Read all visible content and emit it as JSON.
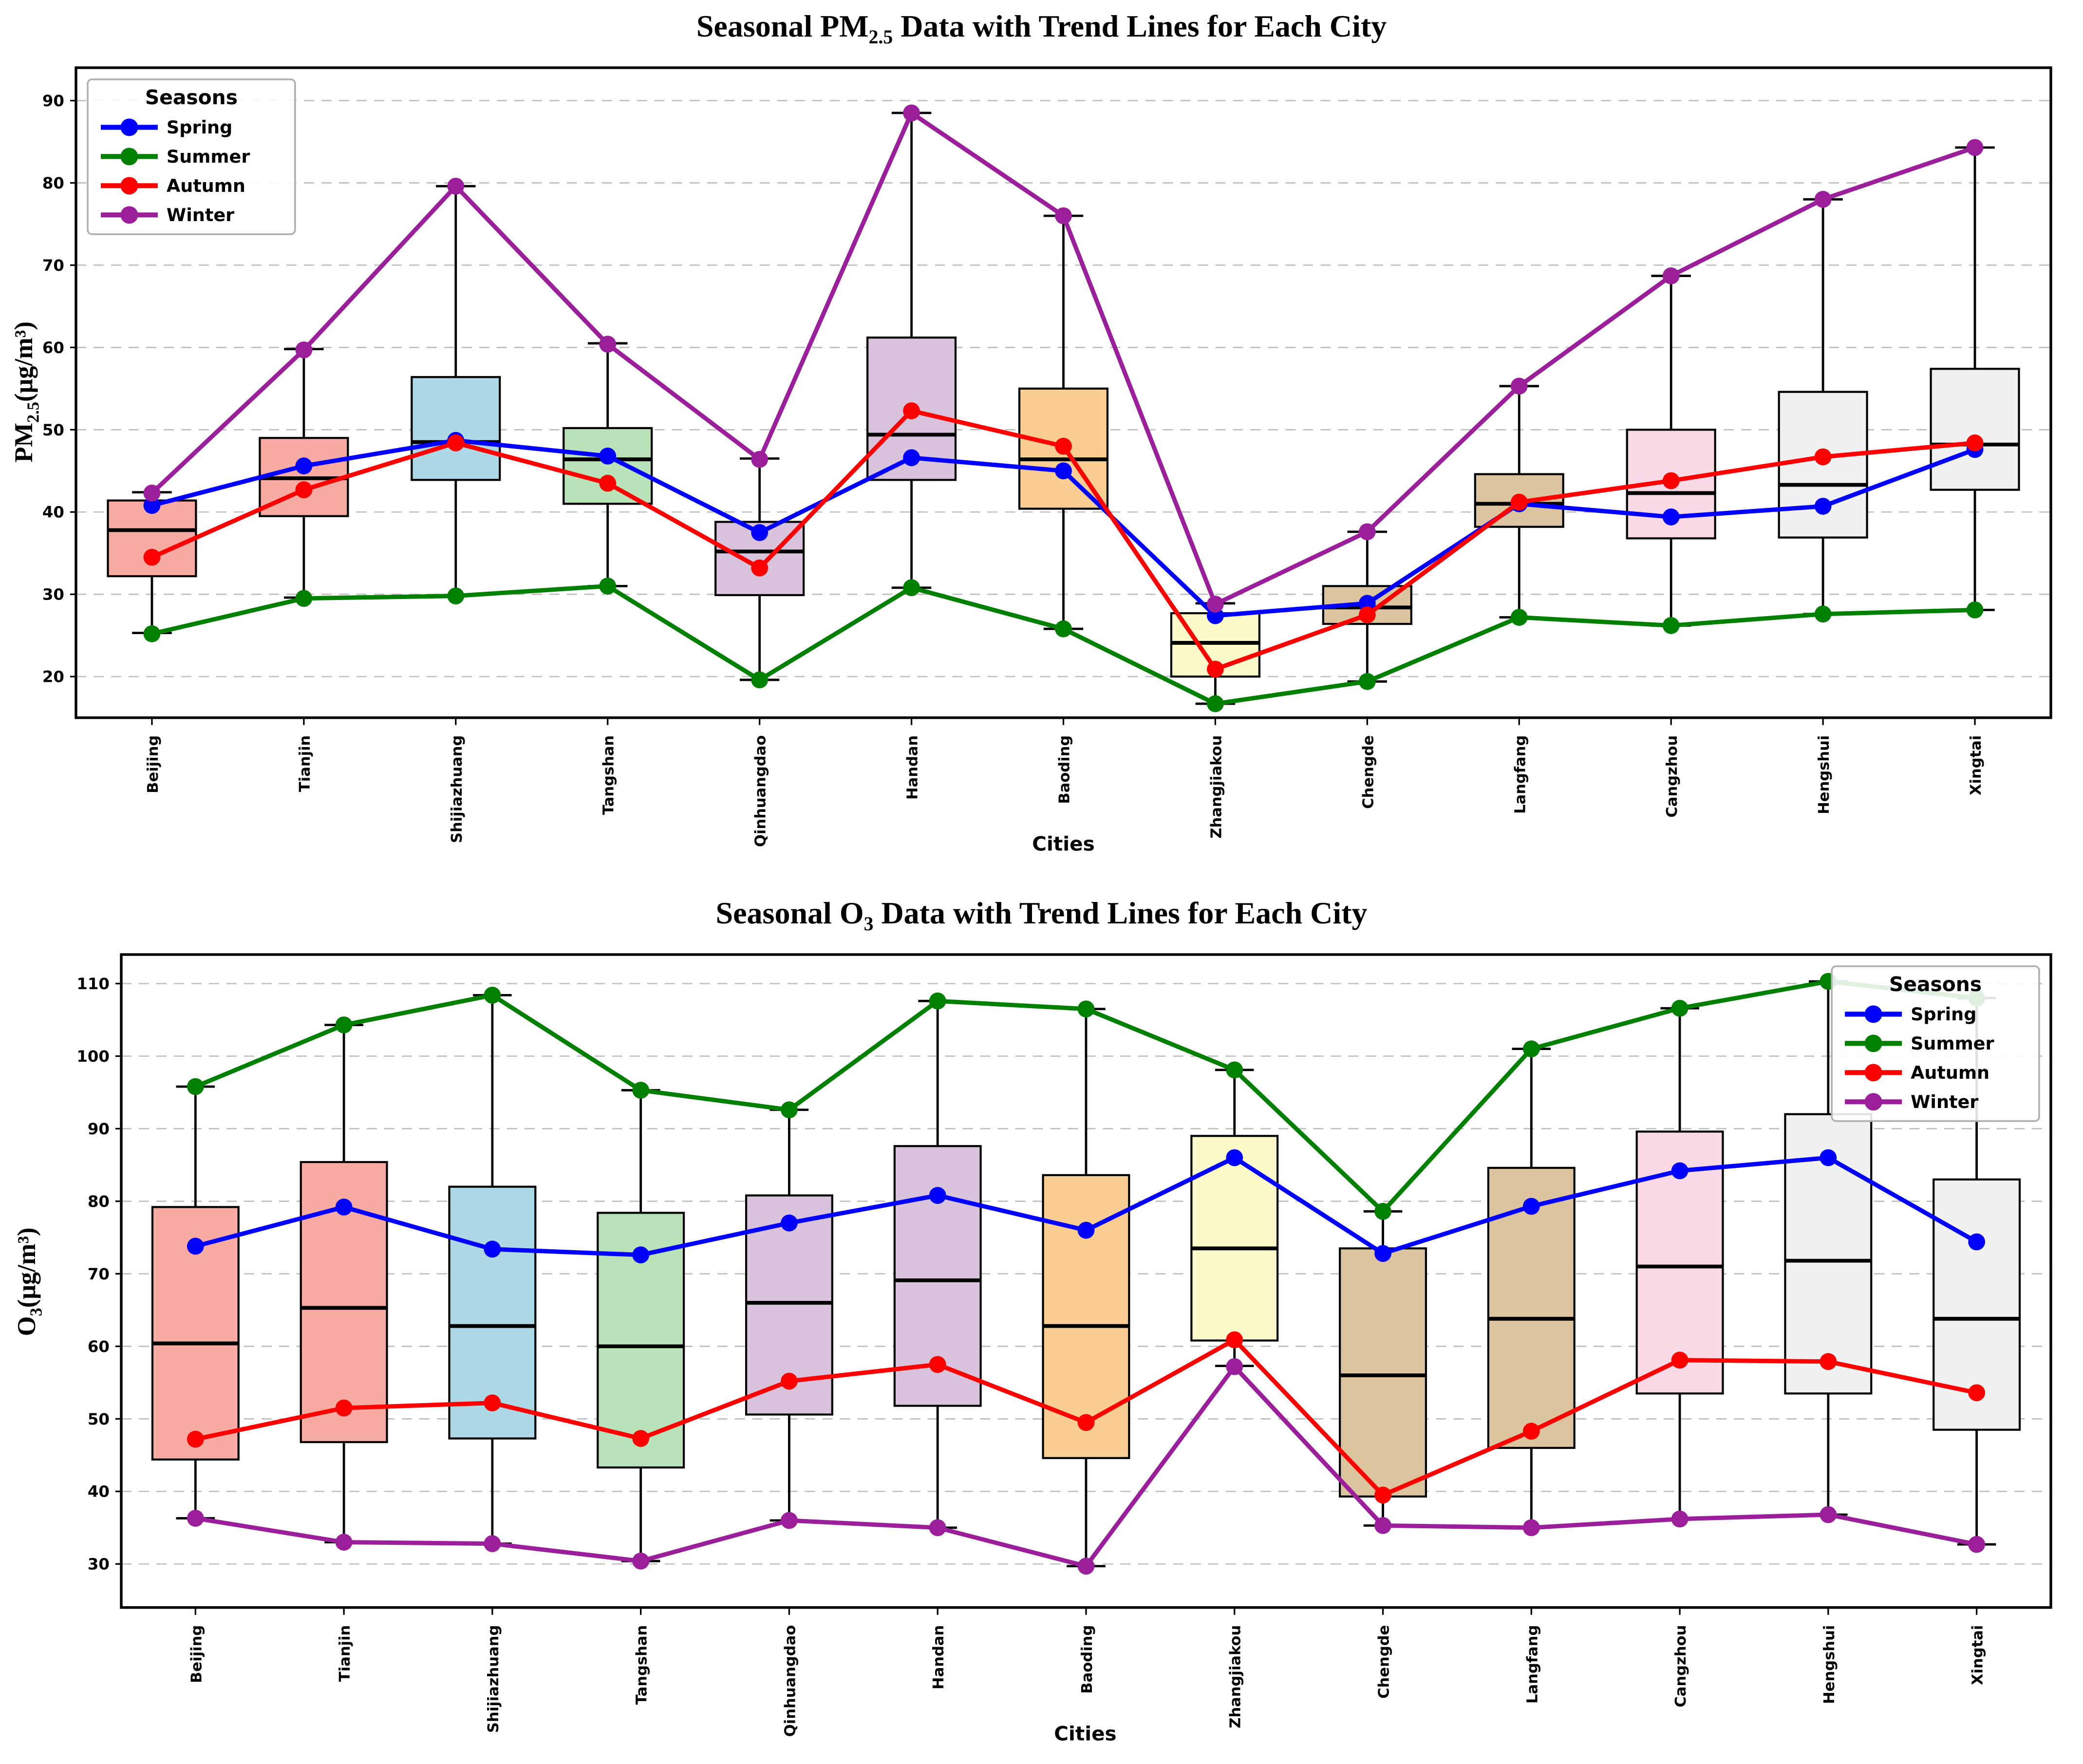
{
  "page": {
    "background": "#ffffff"
  },
  "charts": [
    {
      "title_prefix": "Seasonal PM",
      "title_sub": "2.5",
      "title_suffix": " Data with Trend Lines for Each City",
      "ylabel_prefix": "PM",
      "ylabel_sub": "2.5",
      "ylabel_suffix": "(μg/m³)",
      "xlabel": "Cities",
      "legend": {
        "title": "Seasons",
        "position": "top-left"
      },
      "chart_data": {
        "type": "box+line",
        "title": "Seasonal PM2.5 Data with Trend Lines for Each City",
        "xlabel": "Cities",
        "ylabel": "PM2.5(μg/m³)",
        "grid": "horizontal-dashed",
        "ylim": [
          15,
          94
        ],
        "yticks": [
          20,
          30,
          40,
          50,
          60,
          70,
          80,
          90
        ],
        "categories": [
          "Beijing",
          "Tianjin",
          "Shijiazhuang",
          "Tangshan",
          "Qinhuangdao",
          "Handan",
          "Baoding",
          "Zhangjiakou",
          "Chengde",
          "Langfang",
          "Cangzhou",
          "Hengshui",
          "Xingtai"
        ],
        "box_colors": [
          "#F7ABA3",
          "#F7ABA3",
          "#ADD8E6",
          "#B9E2B9",
          "#D8C2DC",
          "#D8C2DC",
          "#FACD92",
          "#FBFAC8",
          "#DCC49F",
          "#DCC49F",
          "#FAD9E6",
          "#F0F0F0",
          "#F0F0F0"
        ],
        "boxes": [
          {
            "low": 25.3,
            "q1": 32.2,
            "median": 37.8,
            "q3": 41.4,
            "high": 42.4
          },
          {
            "low": 29.6,
            "q1": 39.5,
            "median": 44.1,
            "q3": 49.0,
            "high": 59.8
          },
          {
            "low": 29.9,
            "q1": 43.9,
            "median": 48.5,
            "q3": 56.4,
            "high": 79.6
          },
          {
            "low": 31.0,
            "q1": 41.0,
            "median": 46.4,
            "q3": 50.2,
            "high": 60.5
          },
          {
            "low": 19.6,
            "q1": 29.9,
            "median": 35.2,
            "q3": 38.8,
            "high": 46.5
          },
          {
            "low": 30.8,
            "q1": 43.9,
            "median": 49.4,
            "q3": 61.2,
            "high": 88.5
          },
          {
            "low": 25.8,
            "q1": 40.4,
            "median": 46.4,
            "q3": 55.0,
            "high": 76.0
          },
          {
            "low": 16.7,
            "q1": 20.0,
            "median": 24.1,
            "q3": 27.7,
            "high": 28.9
          },
          {
            "low": 19.4,
            "q1": 26.4,
            "median": 28.4,
            "q3": 31.0,
            "high": 37.6
          },
          {
            "low": 27.2,
            "q1": 38.2,
            "median": 41.0,
            "q3": 44.6,
            "high": 55.3
          },
          {
            "low": 26.2,
            "q1": 36.8,
            "median": 42.3,
            "q3": 50.0,
            "high": 68.7
          },
          {
            "low": 27.6,
            "q1": 36.9,
            "median": 43.3,
            "q3": 54.6,
            "high": 78.0
          },
          {
            "low": 28.1,
            "q1": 42.7,
            "median": 48.2,
            "q3": 57.4,
            "high": 84.3
          }
        ],
        "series": [
          {
            "name": "Spring",
            "color": "#0000FF",
            "values": [
              40.8,
              45.6,
              48.7,
              46.8,
              37.5,
              46.6,
              45.0,
              27.4,
              28.9,
              41.0,
              39.4,
              40.7,
              47.6
            ]
          },
          {
            "name": "Summer",
            "color": "#008000",
            "values": [
              25.2,
              29.5,
              29.8,
              31.0,
              19.6,
              30.8,
              25.8,
              16.7,
              19.4,
              27.2,
              26.2,
              27.6,
              28.1
            ]
          },
          {
            "name": "Autumn",
            "color": "#FF0000",
            "values": [
              34.5,
              42.7,
              48.4,
              43.5,
              33.2,
              52.3,
              48.0,
              20.9,
              27.5,
              41.2,
              43.8,
              46.7,
              48.4
            ]
          },
          {
            "name": "Winter",
            "color": "#9B1F9B",
            "values": [
              42.3,
              59.7,
              79.6,
              60.4,
              46.4,
              88.5,
              76.0,
              28.8,
              37.6,
              55.3,
              68.7,
              78.0,
              84.3
            ]
          }
        ]
      }
    },
    {
      "title_prefix": "Seasonal O",
      "title_sub": "3",
      "title_suffix": " Data with Trend Lines for Each City",
      "ylabel_prefix": "O",
      "ylabel_sub": "3",
      "ylabel_suffix": "(μg/m³)",
      "xlabel": "Cities",
      "legend": {
        "title": "Seasons",
        "position": "top-right"
      },
      "chart_data": {
        "type": "box+line",
        "title": "Seasonal O3 Data with Trend Lines for Each City",
        "xlabel": "Cities",
        "ylabel": "O3(μg/m³)",
        "grid": "horizontal-dashed",
        "ylim": [
          24,
          114
        ],
        "yticks": [
          30,
          40,
          50,
          60,
          70,
          80,
          90,
          100,
          110
        ],
        "categories": [
          "Beijing",
          "Tianjin",
          "Shijiazhuang",
          "Tangshan",
          "Qinhuangdao",
          "Handan",
          "Baoding",
          "Zhangjiakou",
          "Chengde",
          "Langfang",
          "Cangzhou",
          "Hengshui",
          "Xingtai"
        ],
        "box_colors": [
          "#F7ABA3",
          "#F7ABA3",
          "#ADD8E6",
          "#B9E2B9",
          "#D8C2DC",
          "#D8C2DC",
          "#FACD92",
          "#FBFAC8",
          "#DCC49F",
          "#DCC49F",
          "#FAD9E6",
          "#F0F0F0",
          "#F0F0F0"
        ],
        "boxes": [
          {
            "low": 36.3,
            "q1": 44.4,
            "median": 60.4,
            "q3": 79.2,
            "high": 95.8
          },
          {
            "low": 33.0,
            "q1": 46.8,
            "median": 65.3,
            "q3": 85.4,
            "high": 104.3
          },
          {
            "low": 32.8,
            "q1": 47.3,
            "median": 62.8,
            "q3": 82.0,
            "high": 108.4
          },
          {
            "low": 30.4,
            "q1": 43.3,
            "median": 60.0,
            "q3": 78.4,
            "high": 95.3
          },
          {
            "low": 36.0,
            "q1": 50.6,
            "median": 66.0,
            "q3": 80.8,
            "high": 92.6
          },
          {
            "low": 35.0,
            "q1": 51.8,
            "median": 69.1,
            "q3": 87.6,
            "high": 107.6
          },
          {
            "low": 29.7,
            "q1": 44.6,
            "median": 62.8,
            "q3": 83.6,
            "high": 106.5
          },
          {
            "low": 57.3,
            "q1": 60.8,
            "median": 73.5,
            "q3": 89.0,
            "high": 98.1
          },
          {
            "low": 35.3,
            "q1": 39.3,
            "median": 56.0,
            "q3": 73.5,
            "high": 78.6
          },
          {
            "low": 35.0,
            "q1": 46.0,
            "median": 63.8,
            "q3": 84.6,
            "high": 101.0
          },
          {
            "low": 36.2,
            "q1": 53.5,
            "median": 71.0,
            "q3": 89.6,
            "high": 106.6
          },
          {
            "low": 36.8,
            "q1": 53.5,
            "median": 71.8,
            "q3": 92.0,
            "high": 110.3
          },
          {
            "low": 32.7,
            "q1": 48.5,
            "median": 63.8,
            "q3": 83.0,
            "high": 108.0
          }
        ],
        "series": [
          {
            "name": "Spring",
            "color": "#0000FF",
            "values": [
              73.8,
              79.2,
              73.4,
              72.6,
              77.0,
              80.8,
              76.0,
              86.0,
              72.8,
              79.3,
              84.2,
              86.0,
              74.4
            ]
          },
          {
            "name": "Summer",
            "color": "#008000",
            "values": [
              95.8,
              104.3,
              108.4,
              95.3,
              92.6,
              107.6,
              106.5,
              98.1,
              78.6,
              101.0,
              106.6,
              110.3,
              108.0
            ]
          },
          {
            "name": "Autumn",
            "color": "#FF0000",
            "values": [
              47.2,
              51.5,
              52.2,
              47.3,
              55.2,
              57.5,
              49.5,
              60.9,
              39.5,
              48.3,
              58.1,
              57.9,
              53.6
            ]
          },
          {
            "name": "Winter",
            "color": "#9B1F9B",
            "values": [
              36.3,
              33.0,
              32.8,
              30.4,
              36.0,
              35.0,
              29.7,
              57.2,
              35.3,
              35.0,
              36.2,
              36.8,
              32.7
            ]
          }
        ]
      }
    }
  ]
}
